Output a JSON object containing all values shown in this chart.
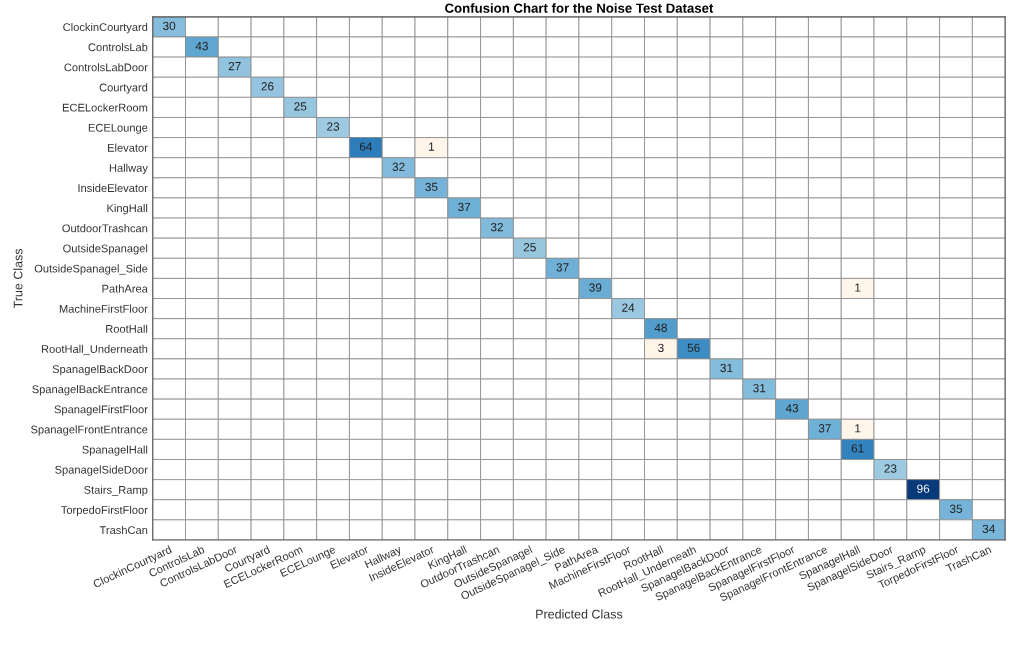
{
  "chart_data": {
    "type": "heatmap",
    "title": "Confusion Chart for the Noise Test Dataset",
    "xlabel": "Predicted Class",
    "ylabel": "True Class",
    "categories": [
      "ClockinCourtyard",
      "ControlsLab",
      "ControlsLabDoor",
      "Courtyard",
      "ECELockerRoom",
      "ECELounge",
      "Elevator",
      "Hallway",
      "InsideElevator",
      "KingHall",
      "OutdoorTrashcan",
      "OutsideSpanagel",
      "OutsideSpanagel_Side",
      "PathArea",
      "MachineFirstFloor",
      "RootHall",
      "RootHall_Underneath",
      "SpanagelBackDoor",
      "SpanagelBackEntrance",
      "SpanagelFirstFloor",
      "SpanagelFrontEntrance",
      "SpanagelHall",
      "SpanagelSideDoor",
      "Stairs_Ramp",
      "TorpedoFirstFloor",
      "TrashCan"
    ],
    "y_categories": [
      "ClockinCourtyard",
      "ControlsLab",
      "ControlsLabDoor",
      "Courtyard",
      "ECELockerRoom",
      "ECELounge",
      "Elevator",
      "Hallway",
      "InsideElevator",
      "KingHall",
      "OutdoorTrashcan",
      "OutsideSpanagel",
      "OutsideSpanagel_Side",
      "PathArea",
      "MachineFirstFloor",
      "RootHall",
      "RootHall_Underneath",
      "SpanagelBackDoor",
      "SpanagelBackEntrance",
      "SpanagelFirstFloor",
      "SpanagelFrontEntrance",
      "SpanagelHall",
      "SpanagelSideDoor",
      "Stairs_Ramp",
      "TorpedoFirstFloor",
      "TrashCan"
    ],
    "cells": [
      [
        30,
        null,
        null,
        null,
        null,
        null,
        null,
        null,
        null,
        null,
        null,
        null,
        null,
        null,
        null,
        null,
        null,
        null,
        null,
        null,
        null,
        null,
        null,
        null,
        null,
        null
      ],
      [
        null,
        43,
        null,
        null,
        null,
        null,
        null,
        null,
        null,
        null,
        null,
        null,
        null,
        null,
        null,
        null,
        null,
        null,
        null,
        null,
        null,
        null,
        null,
        null,
        null,
        null
      ],
      [
        null,
        null,
        27,
        null,
        null,
        null,
        null,
        null,
        null,
        null,
        null,
        null,
        null,
        null,
        null,
        null,
        null,
        null,
        null,
        null,
        null,
        null,
        null,
        null,
        null,
        null
      ],
      [
        null,
        null,
        null,
        26,
        null,
        null,
        null,
        null,
        null,
        null,
        null,
        null,
        null,
        null,
        null,
        null,
        null,
        null,
        null,
        null,
        null,
        null,
        null,
        null,
        null,
        null
      ],
      [
        null,
        null,
        null,
        null,
        25,
        null,
        null,
        null,
        null,
        null,
        null,
        null,
        null,
        null,
        null,
        null,
        null,
        null,
        null,
        null,
        null,
        null,
        null,
        null,
        null,
        null
      ],
      [
        null,
        null,
        null,
        null,
        null,
        23,
        null,
        null,
        null,
        null,
        null,
        null,
        null,
        null,
        null,
        null,
        null,
        null,
        null,
        null,
        null,
        null,
        null,
        null,
        null,
        null
      ],
      [
        null,
        null,
        null,
        null,
        null,
        null,
        64,
        null,
        1,
        null,
        null,
        null,
        null,
        null,
        null,
        null,
        null,
        null,
        null,
        null,
        null,
        null,
        null,
        null,
        null,
        null
      ],
      [
        null,
        null,
        null,
        null,
        null,
        null,
        null,
        32,
        null,
        null,
        null,
        null,
        null,
        null,
        null,
        null,
        null,
        null,
        null,
        null,
        null,
        null,
        null,
        null,
        null,
        null
      ],
      [
        null,
        null,
        null,
        null,
        null,
        null,
        null,
        null,
        35,
        null,
        null,
        null,
        null,
        null,
        null,
        null,
        null,
        null,
        null,
        null,
        null,
        null,
        null,
        null,
        null,
        null
      ],
      [
        null,
        null,
        null,
        null,
        null,
        null,
        null,
        null,
        null,
        37,
        null,
        null,
        null,
        null,
        null,
        null,
        null,
        null,
        null,
        null,
        null,
        null,
        null,
        null,
        null,
        null
      ],
      [
        null,
        null,
        null,
        null,
        null,
        null,
        null,
        null,
        null,
        null,
        32,
        null,
        null,
        null,
        null,
        null,
        null,
        null,
        null,
        null,
        null,
        null,
        null,
        null,
        null,
        null
      ],
      [
        null,
        null,
        null,
        null,
        null,
        null,
        null,
        null,
        null,
        null,
        null,
        25,
        null,
        null,
        null,
        null,
        null,
        null,
        null,
        null,
        null,
        null,
        null,
        null,
        null,
        null
      ],
      [
        null,
        null,
        null,
        null,
        null,
        null,
        null,
        null,
        null,
        null,
        null,
        null,
        37,
        null,
        null,
        null,
        null,
        null,
        null,
        null,
        null,
        null,
        null,
        null,
        null,
        null
      ],
      [
        null,
        null,
        null,
        null,
        null,
        null,
        null,
        null,
        null,
        null,
        null,
        null,
        null,
        39,
        null,
        null,
        null,
        null,
        null,
        null,
        null,
        1,
        null,
        null,
        null,
        null
      ],
      [
        null,
        null,
        null,
        null,
        null,
        null,
        null,
        null,
        null,
        null,
        null,
        null,
        null,
        null,
        24,
        null,
        null,
        null,
        null,
        null,
        null,
        null,
        null,
        null,
        null,
        null
      ],
      [
        null,
        null,
        null,
        null,
        null,
        null,
        null,
        null,
        null,
        null,
        null,
        null,
        null,
        null,
        null,
        48,
        null,
        null,
        null,
        null,
        null,
        null,
        null,
        null,
        null,
        null
      ],
      [
        null,
        null,
        null,
        null,
        null,
        null,
        null,
        null,
        null,
        null,
        null,
        null,
        null,
        null,
        null,
        3,
        56,
        null,
        null,
        null,
        null,
        null,
        null,
        null,
        null,
        null
      ],
      [
        null,
        null,
        null,
        null,
        null,
        null,
        null,
        null,
        null,
        null,
        null,
        null,
        null,
        null,
        null,
        null,
        null,
        31,
        null,
        null,
        null,
        null,
        null,
        null,
        null,
        null
      ],
      [
        null,
        null,
        null,
        null,
        null,
        null,
        null,
        null,
        null,
        null,
        null,
        null,
        null,
        null,
        null,
        null,
        null,
        null,
        31,
        null,
        null,
        null,
        null,
        null,
        null,
        null
      ],
      [
        null,
        null,
        null,
        null,
        null,
        null,
        null,
        null,
        null,
        null,
        null,
        null,
        null,
        null,
        null,
        null,
        null,
        null,
        null,
        43,
        null,
        null,
        null,
        null,
        null,
        null
      ],
      [
        null,
        null,
        null,
        null,
        null,
        null,
        null,
        null,
        null,
        null,
        null,
        null,
        null,
        null,
        null,
        null,
        null,
        null,
        null,
        null,
        37,
        1,
        null,
        null,
        null,
        null
      ],
      [
        null,
        null,
        null,
        null,
        null,
        null,
        null,
        null,
        null,
        null,
        null,
        null,
        null,
        null,
        null,
        null,
        null,
        null,
        null,
        null,
        null,
        61,
        null,
        null,
        null,
        null
      ],
      [
        null,
        null,
        null,
        null,
        null,
        null,
        null,
        null,
        null,
        null,
        null,
        null,
        null,
        null,
        null,
        null,
        null,
        null,
        null,
        null,
        null,
        null,
        23,
        null,
        null,
        null
      ],
      [
        null,
        null,
        null,
        null,
        null,
        null,
        null,
        null,
        null,
        null,
        null,
        null,
        null,
        null,
        null,
        null,
        null,
        null,
        null,
        null,
        null,
        null,
        null,
        96,
        null,
        null
      ],
      [
        null,
        null,
        null,
        null,
        null,
        null,
        null,
        null,
        null,
        null,
        null,
        null,
        null,
        null,
        null,
        null,
        null,
        null,
        null,
        null,
        null,
        null,
        null,
        null,
        35,
        null
      ],
      [
        null,
        null,
        null,
        null,
        null,
        null,
        null,
        null,
        null,
        null,
        null,
        null,
        null,
        null,
        null,
        null,
        null,
        null,
        null,
        null,
        null,
        null,
        null,
        null,
        null,
        34
      ]
    ],
    "data_labels": true
  }
}
